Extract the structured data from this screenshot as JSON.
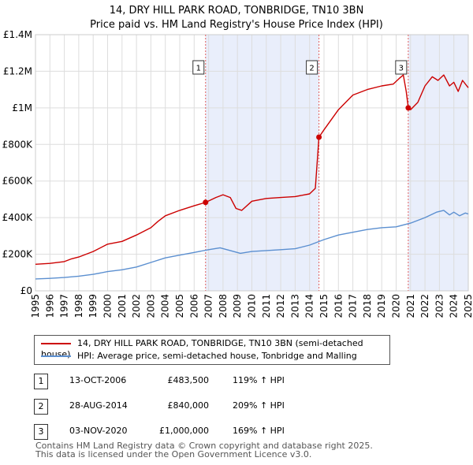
{
  "title_line1": "14, DRY HILL PARK ROAD, TONBRIDGE, TN10 3BN",
  "title_line2": "Price paid vs. HM Land Registry's House Price Index (HPI)",
  "chart_data": {
    "type": "line",
    "xlim": [
      1995,
      2025
    ],
    "ylim": [
      0,
      1400000
    ],
    "y_ticks": [
      {
        "value": 0,
        "label": "£0"
      },
      {
        "value": 200000,
        "label": "£200K"
      },
      {
        "value": 400000,
        "label": "£400K"
      },
      {
        "value": 600000,
        "label": "£600K"
      },
      {
        "value": 800000,
        "label": "£800K"
      },
      {
        "value": 1000000,
        "label": "£1M"
      },
      {
        "value": 1200000,
        "label": "£1.2M"
      },
      {
        "value": 1400000,
        "label": "£1.4M"
      }
    ],
    "x_ticks": [
      1995,
      1996,
      1997,
      1998,
      1999,
      2000,
      2001,
      2002,
      2003,
      2004,
      2005,
      2006,
      2007,
      2008,
      2009,
      2010,
      2011,
      2012,
      2013,
      2014,
      2015,
      2016,
      2017,
      2018,
      2019,
      2020,
      2021,
      2022,
      2023,
      2024,
      2025
    ],
    "colors": {
      "property": "#cc0000",
      "hpi": "#5b8fd0",
      "shade": "#e9eefb",
      "grid": "#dddddd",
      "vline": "#e06060"
    },
    "series": [
      {
        "name": "14, DRY HILL PARK ROAD, TONBRIDGE, TN10 3BN (semi-detached house)",
        "x": [
          1995.0,
          1996.0,
          1997.0,
          1997.5,
          1998.0,
          1999.0,
          2000.0,
          2001.0,
          2002.0,
          2003.0,
          2003.5,
          2004.0,
          2005.0,
          2006.0,
          2006.79,
          2007.5,
          2008.0,
          2008.5,
          2008.9,
          2009.3,
          2010.0,
          2011.0,
          2012.0,
          2013.0,
          2014.0,
          2014.4,
          2014.65,
          2015.0,
          2016.0,
          2017.0,
          2018.0,
          2019.0,
          2019.8,
          2020.2,
          2020.5,
          2020.7,
          2020.84,
          2021.0,
          2021.5,
          2022.0,
          2022.5,
          2022.9,
          2023.3,
          2023.7,
          2024.0,
          2024.3,
          2024.6,
          2025.0
        ],
        "values": [
          145000,
          150000,
          160000,
          175000,
          185000,
          215000,
          255000,
          270000,
          305000,
          345000,
          380000,
          410000,
          440000,
          465000,
          483500,
          510000,
          525000,
          510000,
          450000,
          440000,
          490000,
          505000,
          510000,
          515000,
          530000,
          560000,
          840000,
          880000,
          990000,
          1070000,
          1100000,
          1120000,
          1130000,
          1160000,
          1180000,
          1090000,
          1000000,
          990000,
          1030000,
          1120000,
          1170000,
          1150000,
          1180000,
          1120000,
          1140000,
          1090000,
          1150000,
          1110000
        ]
      },
      {
        "name": "HPI: Average price, semi-detached house, Tonbridge and Malling",
        "x": [
          1995.0,
          1996.0,
          1997.0,
          1998.0,
          1999.0,
          2000.0,
          2001.0,
          2002.0,
          2003.0,
          2004.0,
          2005.0,
          2006.0,
          2007.0,
          2007.8,
          2008.5,
          2009.2,
          2010.0,
          2011.0,
          2012.0,
          2013.0,
          2014.0,
          2015.0,
          2016.0,
          2017.0,
          2018.0,
          2019.0,
          2020.0,
          2021.0,
          2022.0,
          2022.8,
          2023.3,
          2023.7,
          2024.0,
          2024.4,
          2024.8,
          2025.0
        ],
        "values": [
          65000,
          68000,
          73000,
          80000,
          90000,
          105000,
          115000,
          130000,
          155000,
          180000,
          195000,
          210000,
          225000,
          235000,
          220000,
          205000,
          215000,
          220000,
          225000,
          230000,
          250000,
          280000,
          305000,
          320000,
          335000,
          345000,
          350000,
          370000,
          400000,
          430000,
          440000,
          415000,
          430000,
          410000,
          425000,
          420000
        ]
      }
    ],
    "sales": [
      {
        "n": "1",
        "x": 2006.79,
        "value": 483500
      },
      {
        "n": "2",
        "x": 2014.65,
        "value": 840000
      },
      {
        "n": "3",
        "x": 2020.84,
        "value": 1000000
      }
    ]
  },
  "legend": {
    "property_label": "14, DRY HILL PARK ROAD, TONBRIDGE, TN10 3BN (semi-detached house)",
    "hpi_label": "HPI: Average price, semi-detached house, Tonbridge and Malling"
  },
  "sales_table": [
    {
      "num": "1",
      "date": "13-OCT-2006",
      "price": "£483,500",
      "hpi": "119% ↑ HPI"
    },
    {
      "num": "2",
      "date": "28-AUG-2014",
      "price": "£840,000",
      "hpi": "209% ↑ HPI"
    },
    {
      "num": "3",
      "date": "03-NOV-2020",
      "price": "£1,000,000",
      "hpi": "169% ↑ HPI"
    }
  ],
  "footer_line1": "Contains HM Land Registry data © Crown copyright and database right 2025.",
  "footer_line2": "This data is licensed under the Open Government Licence v3.0."
}
